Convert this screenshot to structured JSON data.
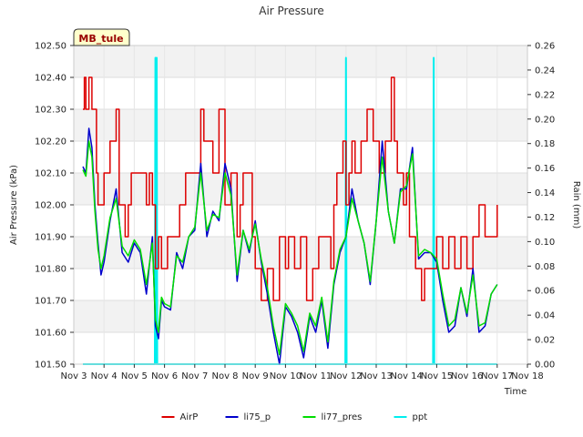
{
  "chart_data": {
    "type": "line",
    "title": "Air Pressure",
    "xlabel": "Time",
    "ylabel": "Air Pressure (kPa)",
    "y2label": "Rain (mm)",
    "site_label": "MB_tule",
    "xlim": [
      3,
      18
    ],
    "ylim": [
      101.5,
      102.5
    ],
    "y2lim": [
      0,
      0.26
    ],
    "x_ticks": [
      3,
      4,
      5,
      6,
      7,
      8,
      9,
      10,
      11,
      12,
      13,
      14,
      15,
      16,
      17,
      18
    ],
    "x_tick_labels": [
      "Nov 3",
      "Nov 4",
      "Nov 5",
      "Nov 6",
      "Nov 7",
      "Nov 8",
      "Nov 9",
      "Nov 10",
      "Nov 11",
      "Nov 12",
      "Nov 13",
      "Nov 14",
      "Nov 15",
      "Nov 16",
      "Nov 17",
      "Nov 18"
    ],
    "y_ticks": [
      101.5,
      101.6,
      101.7,
      101.8,
      101.9,
      102.0,
      102.1,
      102.2,
      102.3,
      102.4,
      102.5
    ],
    "y_tick_labels": [
      "101.50",
      "101.60",
      "101.70",
      "101.80",
      "101.90",
      "102.00",
      "102.10",
      "102.20",
      "102.30",
      "102.40",
      "102.50"
    ],
    "y2_ticks": [
      0,
      0.02,
      0.04,
      0.06,
      0.08,
      0.1,
      0.12,
      0.14,
      0.16,
      0.18,
      0.2,
      0.22,
      0.24,
      0.26
    ],
    "y2_tick_labels": [
      "0.00",
      "0.02",
      "0.04",
      "0.06",
      "0.08",
      "0.10",
      "0.12",
      "0.14",
      "0.16",
      "0.18",
      "0.20",
      "0.22",
      "0.24",
      "0.26"
    ],
    "grid": true,
    "banded_background": true,
    "legend_position": "bottom-center",
    "series": [
      {
        "name": "AirP",
        "color": "#dd0000",
        "axis": "left",
        "x": [
          3.3,
          3.35,
          3.4,
          3.45,
          3.5,
          3.55,
          3.6,
          3.75,
          3.8,
          4.0,
          4.2,
          4.4,
          4.5,
          4.7,
          4.8,
          4.9,
          5.0,
          5.2,
          5.4,
          5.5,
          5.6,
          5.7,
          5.8,
          5.9,
          6.0,
          6.1,
          6.3,
          6.5,
          6.7,
          6.8,
          7.0,
          7.2,
          7.3,
          7.5,
          7.6,
          7.8,
          8.0,
          8.2,
          8.4,
          8.5,
          8.6,
          8.8,
          8.9,
          9.0,
          9.2,
          9.4,
          9.6,
          9.8,
          10.0,
          10.1,
          10.3,
          10.5,
          10.7,
          10.9,
          11.0,
          11.1,
          11.3,
          11.5,
          11.6,
          11.7,
          11.8,
          11.9,
          12.0,
          12.1,
          12.2,
          12.3,
          12.5,
          12.7,
          12.9,
          13.1,
          13.3,
          13.5,
          13.6,
          13.7,
          13.9,
          14.0,
          14.1,
          14.2,
          14.3,
          14.4,
          14.5,
          14.6,
          14.8,
          15.0,
          15.2,
          15.4,
          15.6,
          15.8,
          16.0,
          16.2,
          16.4,
          16.6,
          16.8,
          17.0
        ],
        "y": [
          102.3,
          102.4,
          102.3,
          102.3,
          102.4,
          102.4,
          102.3,
          102.1,
          102.0,
          102.1,
          102.2,
          102.3,
          102.0,
          101.9,
          102.0,
          102.1,
          102.1,
          102.1,
          102.0,
          102.1,
          102.0,
          101.8,
          101.9,
          101.8,
          101.8,
          101.9,
          101.9,
          102.0,
          102.1,
          102.1,
          102.1,
          102.3,
          102.2,
          102.2,
          102.1,
          102.3,
          102.0,
          102.1,
          101.9,
          102.0,
          102.1,
          102.1,
          101.9,
          101.8,
          101.7,
          101.8,
          101.7,
          101.9,
          101.8,
          101.9,
          101.8,
          101.9,
          101.7,
          101.8,
          101.8,
          101.9,
          101.9,
          101.8,
          102.0,
          102.1,
          102.1,
          102.2,
          102.0,
          102.1,
          102.2,
          102.1,
          102.2,
          102.3,
          102.2,
          102.1,
          102.2,
          102.4,
          102.2,
          102.1,
          102.0,
          102.1,
          101.9,
          101.9,
          101.8,
          101.8,
          101.7,
          101.8,
          101.8,
          101.9,
          101.8,
          101.9,
          101.8,
          101.9,
          101.8,
          101.9,
          102.0,
          101.9,
          101.9,
          102.0
        ],
        "values_note": ""
      },
      {
        "name": "li75_p",
        "color": "#0000cc",
        "axis": "left",
        "x": [
          3.3,
          3.4,
          3.5,
          3.6,
          3.7,
          3.8,
          3.9,
          4.0,
          4.2,
          4.4,
          4.6,
          4.8,
          5.0,
          5.2,
          5.4,
          5.6,
          5.7,
          5.8,
          5.9,
          6.0,
          6.2,
          6.4,
          6.6,
          6.8,
          7.0,
          7.2,
          7.4,
          7.6,
          7.8,
          8.0,
          8.2,
          8.4,
          8.6,
          8.8,
          9.0,
          9.2,
          9.4,
          9.6,
          9.8,
          10.0,
          10.2,
          10.4,
          10.6,
          10.8,
          11.0,
          11.2,
          11.4,
          11.6,
          11.8,
          12.0,
          12.2,
          12.4,
          12.6,
          12.8,
          13.0,
          13.2,
          13.4,
          13.6,
          13.8,
          14.0,
          14.2,
          14.4,
          14.6,
          14.8,
          15.0,
          15.2,
          15.4,
          15.6,
          15.8,
          16.0,
          16.2,
          16.4,
          16.6,
          16.8,
          17.0
        ],
        "y": [
          102.12,
          102.1,
          102.24,
          102.18,
          102.0,
          101.88,
          101.78,
          101.82,
          101.95,
          102.05,
          101.85,
          101.82,
          101.88,
          101.85,
          101.72,
          101.9,
          101.62,
          101.58,
          101.7,
          101.68,
          101.67,
          101.85,
          101.8,
          101.9,
          101.92,
          102.13,
          101.9,
          101.98,
          101.95,
          102.13,
          102.05,
          101.76,
          101.92,
          101.85,
          101.95,
          101.82,
          101.72,
          101.6,
          101.5,
          101.68,
          101.65,
          101.6,
          101.52,
          101.65,
          101.6,
          101.7,
          101.55,
          101.75,
          101.85,
          101.9,
          102.05,
          101.95,
          101.88,
          101.75,
          101.95,
          102.2,
          101.98,
          101.88,
          102.05,
          102.05,
          102.18,
          101.83,
          101.85,
          101.85,
          101.82,
          101.7,
          101.6,
          101.62,
          101.74,
          101.65,
          101.8,
          101.6,
          101.62,
          101.72,
          101.75
        ],
        "values_note": ""
      },
      {
        "name": "li77_pres",
        "color": "#00dd00",
        "axis": "left",
        "x": [
          3.3,
          3.4,
          3.5,
          3.6,
          3.7,
          3.8,
          3.9,
          4.0,
          4.2,
          4.4,
          4.6,
          4.8,
          5.0,
          5.2,
          5.4,
          5.6,
          5.7,
          5.8,
          5.9,
          6.0,
          6.2,
          6.4,
          6.6,
          6.8,
          7.0,
          7.2,
          7.4,
          7.6,
          7.8,
          8.0,
          8.2,
          8.4,
          8.6,
          8.8,
          9.0,
          9.2,
          9.4,
          9.6,
          9.8,
          10.0,
          10.2,
          10.4,
          10.6,
          10.8,
          11.0,
          11.2,
          11.4,
          11.6,
          11.8,
          12.0,
          12.2,
          12.4,
          12.6,
          12.8,
          13.0,
          13.2,
          13.4,
          13.6,
          13.8,
          14.0,
          14.2,
          14.4,
          14.6,
          14.8,
          15.0,
          15.2,
          15.4,
          15.6,
          15.8,
          16.0,
          16.2,
          16.4,
          16.6,
          16.8,
          17.0
        ],
        "y": [
          102.11,
          102.09,
          102.2,
          102.15,
          101.98,
          101.86,
          101.8,
          101.84,
          101.96,
          102.02,
          101.87,
          101.84,
          101.89,
          101.86,
          101.75,
          101.88,
          101.64,
          101.6,
          101.71,
          101.69,
          101.68,
          101.84,
          101.82,
          101.9,
          101.93,
          102.1,
          101.92,
          101.97,
          101.96,
          102.1,
          102.03,
          101.78,
          101.92,
          101.86,
          101.94,
          101.83,
          101.74,
          101.62,
          101.53,
          101.69,
          101.66,
          101.62,
          101.54,
          101.66,
          101.62,
          101.71,
          101.57,
          101.76,
          101.86,
          101.9,
          102.02,
          101.95,
          101.88,
          101.76,
          101.95,
          102.15,
          101.98,
          101.88,
          102.04,
          102.06,
          102.16,
          101.84,
          101.86,
          101.85,
          101.83,
          101.72,
          101.62,
          101.64,
          101.74,
          101.66,
          101.78,
          101.62,
          101.63,
          101.72,
          101.75
        ],
        "values_note": ""
      },
      {
        "name": "ppt",
        "color": "#00eeee",
        "axis": "right",
        "x": [
          3.3,
          5.68,
          5.7,
          5.72,
          5.74,
          5.76,
          11.98,
          12.0,
          12.02,
          14.88,
          14.9,
          14.92,
          17.0
        ],
        "y": [
          0,
          0,
          0.25,
          0,
          0.25,
          0,
          0,
          0.25,
          0,
          0,
          0.25,
          0,
          0
        ],
        "values_note": ""
      }
    ]
  }
}
